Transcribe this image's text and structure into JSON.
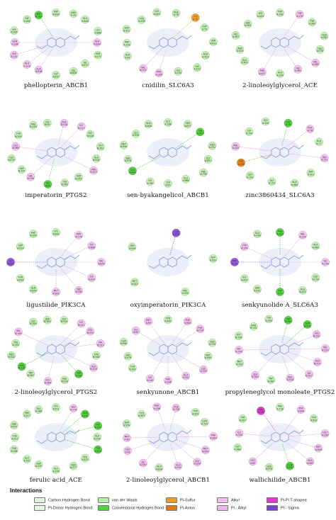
{
  "panels": [
    {
      "caption": "phellopterin_ABCB1",
      "residues": [
        [
          "ASP",
          "B:895",
          "vdw"
        ],
        [
          "ASN",
          "A:30",
          "vdw"
        ],
        [
          "GLU",
          "A:848",
          "vdw"
        ],
        [
          "LYS",
          "A:888",
          "vdw"
        ],
        [
          "ALA",
          "A:830",
          "alkyl"
        ],
        [
          "SER",
          "A:171",
          "vdw"
        ],
        [
          "ILE",
          "A:213",
          "vdw"
        ],
        [
          "LYS",
          "A:826",
          "vdw"
        ],
        [
          "GLY",
          "A:827",
          "vdw"
        ],
        [
          "ALA",
          "A:918",
          "alkyl"
        ],
        [
          "ALA",
          "A:129",
          "alkyl"
        ],
        [
          "LEU",
          "A:132",
          "alkyl"
        ],
        [
          "GLN",
          "A:186",
          "alkyl"
        ],
        [
          "LYS",
          "A:185",
          "vdw"
        ],
        [
          "GLY",
          "A:186",
          "vdw"
        ],
        [
          "SER",
          "A:183",
          "hbond"
        ]
      ]
    },
    {
      "caption": "cnidilin_SLC6A3",
      "residues": [
        [
          "PHE",
          "A:76",
          "vdw"
        ],
        [
          "CYS",
          "A:75",
          "sulfur"
        ],
        [
          "ASP",
          "A:79",
          "vdw"
        ],
        [
          "SER",
          "A:421",
          "vdw"
        ],
        [
          "ALA",
          "A:423",
          "vdw"
        ],
        [
          "GLY",
          "A:153",
          "vdw"
        ],
        [
          "LEU",
          "A:150",
          "vdw"
        ],
        [
          "PHE",
          "A:320",
          "alkyl"
        ],
        [
          "VAL",
          "A:152",
          "alkyl"
        ],
        [
          "ALA",
          "A:81",
          "vdw"
        ],
        [
          "PHE",
          "A:155",
          "vdw"
        ],
        [
          "SER",
          "A:422",
          "vdw"
        ],
        [
          "TYR",
          "A:156",
          "vdw"
        ],
        [
          "GLY",
          "A:425",
          "vdw"
        ]
      ]
    },
    {
      "caption": "2-linoleoylglycerol_ACE",
      "residues": [
        [
          "THR",
          "A:282",
          "vdw"
        ],
        [
          "TRP",
          "A:279",
          "alkyl"
        ],
        [
          "TYR",
          "A:360",
          "vdw"
        ],
        [
          "GLN",
          "A:281",
          "vdw"
        ],
        [
          "GLU",
          "A:376",
          "vdw"
        ],
        [
          "VAL",
          "A:380",
          "alkyl"
        ],
        [
          "HIS",
          "A:383",
          "alkyl"
        ],
        [
          "ALA",
          "A:354",
          "vdw"
        ],
        [
          "PHE",
          "A:457",
          "alkyl"
        ],
        [
          "GLU",
          "A:403",
          "vdw"
        ],
        [
          "ASP",
          "A:415",
          "vdw"
        ],
        [
          "HIS",
          "A:387",
          "vdw"
        ],
        [
          "SER",
          "A:355",
          "vdw"
        ],
        [
          "LYS",
          "A:454",
          "vdw"
        ]
      ]
    },
    {
      "caption": "imperatorin_PTGS2",
      "residues": [
        [
          "PHE",
          "B:518",
          "alkyl"
        ],
        [
          "ILE",
          "B:517",
          "alkyl"
        ],
        [
          "GLY",
          "B:526",
          "vdw"
        ],
        [
          "LEU",
          "B:352",
          "vdw"
        ],
        [
          "ALA",
          "B:516",
          "vdw"
        ],
        [
          "ARG",
          "B:513",
          "alkyl"
        ],
        [
          "SER",
          "B:353",
          "vdw"
        ],
        [
          "TYR",
          "B:385",
          "vdw"
        ],
        [
          "HIS",
          "B:90",
          "hbond"
        ],
        [
          "VAL",
          "B:349",
          "alkyl"
        ],
        [
          "ASP",
          "B:347",
          "vdw"
        ],
        [
          "GLY",
          "B:192",
          "vdw"
        ],
        [
          "LEU",
          "B:384",
          "alkyl"
        ],
        [
          "TYR",
          "B:355",
          "vdw"
        ],
        [
          "ARG",
          "B:120",
          "vdw"
        ],
        [
          "LYS",
          "B:83",
          "vdw"
        ]
      ]
    },
    {
      "caption": "sen-byakangelicol_ABCB1",
      "residues": [
        [
          "GLU",
          "A:788",
          "vdw"
        ],
        [
          "SER",
          "A:837",
          "vdw"
        ],
        [
          "TYR",
          "A:953",
          "hbond"
        ],
        [
          "ASN",
          "A:721",
          "vdw"
        ],
        [
          "GLY",
          "A:831",
          "vdw"
        ],
        [
          "PHE",
          "A:728",
          "vdw"
        ],
        [
          "ALA",
          "A:985",
          "vdw"
        ],
        [
          "LEU",
          "A:65",
          "vdw"
        ],
        [
          "ILE",
          "A:340",
          "vdw"
        ],
        [
          "GLN",
          "A:990",
          "hbond"
        ],
        [
          "SER",
          "A:979",
          "vdw"
        ],
        [
          "MET",
          "A:949",
          "vdw"
        ],
        [
          "LEU",
          "A:339",
          "vdw"
        ],
        [
          "GLN",
          "A:838",
          "vdw"
        ]
      ]
    },
    {
      "caption": "zinc3860434_SLC6A3",
      "residues": [
        [
          "ASP",
          "A:79",
          "hbond"
        ],
        [
          "PHE",
          "A:76",
          "alkyl"
        ],
        [
          "ALA",
          "A:77",
          "vdw"
        ],
        [
          "VAL",
          "A:152",
          "alkyl"
        ],
        [
          "SER",
          "A:421",
          "vdw"
        ],
        [
          "ALA",
          "A:480",
          "vdw"
        ],
        [
          "GLY",
          "A:153",
          "vdw"
        ],
        [
          "LEU",
          "A:150",
          "vdw"
        ],
        [
          "TYR",
          "A:156",
          "anion"
        ],
        [
          "PHE",
          "A:320",
          "alkyl"
        ],
        [
          "ILE",
          "A:154",
          "vdw"
        ],
        [
          "GLY",
          "A:426",
          "vdw"
        ]
      ]
    },
    {
      "caption": "ligustilide_PIK3CA",
      "residues": [
        [
          "LYS",
          "A:802",
          "vdw"
        ],
        [
          "PRO",
          "A:778",
          "alkyl"
        ],
        [
          "ILE",
          "A:848",
          "alkyl"
        ],
        [
          "VAL",
          "A:850",
          "alkyl"
        ],
        [
          "ILE",
          "A:932",
          "alkyl"
        ],
        [
          "TRP",
          "A:780",
          "alkyl"
        ],
        [
          "MET",
          "A:922",
          "alkyl"
        ],
        [
          "GLN",
          "A:859",
          "vdw"
        ],
        [
          "THR",
          "A:856",
          "vdw"
        ],
        [
          "ILE",
          "A:800",
          "sigma"
        ],
        [
          "ASP",
          "A:933",
          "vdw"
        ],
        [
          "PHE",
          "A:930",
          "vdw"
        ]
      ]
    },
    {
      "caption": "oxyimperatorin_PIK3CA",
      "residues": [
        [
          "GLN",
          "A:859",
          "sigma"
        ],
        [
          "ASP",
          "A:933",
          "vdw"
        ],
        [
          "PHE",
          "A:930",
          "vdw"
        ],
        [
          "MET",
          "A:922",
          "vdw"
        ],
        [
          "SER",
          "A:919",
          "vdw"
        ]
      ]
    },
    {
      "caption": "senkyunolide A_SLC6A3",
      "residues": [
        [
          "PHE",
          "A:320",
          "hbond"
        ],
        [
          "VAL",
          "A:152",
          "alkyl"
        ],
        [
          "ALA",
          "A:480",
          "vdw"
        ],
        [
          "ILE",
          "A:154",
          "alkyl"
        ],
        [
          "LEU",
          "A:150",
          "vdw"
        ],
        [
          "ALA",
          "A:423",
          "vdw"
        ],
        [
          "ASP",
          "A:79",
          "hbond"
        ],
        [
          "SER",
          "A:421",
          "vdw"
        ],
        [
          "GLY",
          "A:425",
          "vdw"
        ],
        [
          "PHE",
          "A:76",
          "sigma"
        ],
        [
          "TYR",
          "A:156",
          "alkyl"
        ],
        [
          "GLU",
          "A:426",
          "vdw"
        ]
      ]
    },
    {
      "caption": "2-linoleoylglycerol_PTGS2",
      "residues": [
        [
          "GLY",
          "B:526",
          "vdw"
        ],
        [
          "ILE",
          "B:517",
          "alkyl"
        ],
        [
          "LEU",
          "B:352",
          "alkyl"
        ],
        [
          "VAL",
          "B:523",
          "alkyl"
        ],
        [
          "TYR",
          "B:385",
          "vdw"
        ],
        [
          "ALA",
          "B:516",
          "alkyl"
        ],
        [
          "SER",
          "B:530",
          "hbond"
        ],
        [
          "PHE",
          "B:518",
          "vdw"
        ],
        [
          "LEU",
          "B:384",
          "alkyl"
        ],
        [
          "TRP",
          "B:387",
          "vdw"
        ],
        [
          "ARG",
          "B:120",
          "hbond"
        ],
        [
          "MET",
          "B:522",
          "vdw"
        ],
        [
          "TYR",
          "B:355",
          "vdw"
        ],
        [
          "VAL",
          "B:349",
          "alkyl"
        ],
        [
          "LEU",
          "B:359",
          "vdw"
        ],
        [
          "SER",
          "B:353",
          "vdw"
        ]
      ]
    },
    {
      "caption": "senkyunone_ABCB1",
      "residues": [
        [
          "TYR",
          "A:953",
          "vdw"
        ],
        [
          "PHE",
          "A:983",
          "alkyl"
        ],
        [
          "PHE",
          "A:728",
          "alkyl"
        ],
        [
          "GLN",
          "A:725",
          "vdw"
        ],
        [
          "MET",
          "A:949",
          "vdw"
        ],
        [
          "LEU",
          "A:339",
          "alkyl"
        ],
        [
          "ALA",
          "A:342",
          "alkyl"
        ],
        [
          "PHE",
          "A:336",
          "alkyl"
        ],
        [
          "ILE",
          "A:340",
          "alkyl"
        ],
        [
          "TYR",
          "A:307",
          "vdw"
        ],
        [
          "SER",
          "A:979",
          "vdw"
        ],
        [
          "GLN",
          "A:990",
          "vdw"
        ],
        [
          "LEU",
          "A:65",
          "alkyl"
        ],
        [
          "MET",
          "A:69",
          "alkyl"
        ]
      ]
    },
    {
      "caption": "propyleneglycol monoleate_PTGS2",
      "residues": [
        [
          "TYR",
          "B:385",
          "hbond"
        ],
        [
          "SER",
          "B:530",
          "hbond"
        ],
        [
          "LEU",
          "B:352",
          "alkyl"
        ],
        [
          "VAL",
          "B:523",
          "alkyl"
        ],
        [
          "ALA",
          "B:527",
          "alkyl"
        ],
        [
          "ILE",
          "B:517",
          "alkyl"
        ],
        [
          "PHE",
          "B:518",
          "alkyl"
        ],
        [
          "TRP",
          "B:387",
          "vdw"
        ],
        [
          "LEU",
          "B:384",
          "alkyl"
        ],
        [
          "MET",
          "B:522",
          "vdw"
        ],
        [
          "VAL",
          "B:349",
          "alkyl"
        ],
        [
          "GLY",
          "B:526",
          "vdw"
        ],
        [
          "ARG",
          "B:120",
          "vdw"
        ],
        [
          "TYR",
          "B:355",
          "vdw"
        ]
      ]
    },
    {
      "caption": "ferulic acid_ACE",
      "residues": [
        [
          "LYS",
          "A:511",
          "vdw"
        ],
        [
          "TRP",
          "A:279",
          "alkyl"
        ],
        [
          "GLN",
          "A:281",
          "hbond"
        ],
        [
          "HIS",
          "A:353",
          "hbond"
        ],
        [
          "ALA",
          "A:354",
          "vdw"
        ],
        [
          "TYR",
          "A:520",
          "hbond"
        ],
        [
          "TYR",
          "A:523",
          "vdw"
        ],
        [
          "ASN",
          "A:277",
          "vdw"
        ],
        [
          "GLU",
          "A:376",
          "vdw"
        ],
        [
          "ASP",
          "A:415",
          "vdw"
        ],
        [
          "GLU",
          "A:162",
          "vdw"
        ],
        [
          "THR",
          "A:166",
          "vdw"
        ],
        [
          "HIS",
          "A:513",
          "vdw"
        ],
        [
          "PHE",
          "A:457",
          "vdw"
        ],
        [
          "PHE",
          "A:527",
          "vdw"
        ],
        [
          "VAL",
          "A:380",
          "vdw"
        ]
      ]
    },
    {
      "caption": "2-linoleoylglycerol_ABCB1",
      "residues": [
        [
          "PHE",
          "A:728",
          "alkyl"
        ],
        [
          "TYR",
          "A:953",
          "vdw"
        ],
        [
          "GLN",
          "A:725",
          "vdw"
        ],
        [
          "PHE",
          "A:983",
          "alkyl"
        ],
        [
          "MET",
          "A:949",
          "alkyl"
        ],
        [
          "LEU",
          "A:339",
          "alkyl"
        ],
        [
          "ALA",
          "A:342",
          "alkyl"
        ],
        [
          "GLN",
          "A:838",
          "vdw"
        ],
        [
          "ILE",
          "A:340",
          "alkyl"
        ],
        [
          "LEU",
          "A:65",
          "alkyl"
        ],
        [
          "MET",
          "A:69",
          "alkyl"
        ],
        [
          "SER",
          "A:979",
          "vdw"
        ],
        [
          "TYR",
          "A:307",
          "vdw"
        ],
        [
          "PHE",
          "A:336",
          "alkyl"
        ]
      ]
    },
    {
      "caption": "wallichilide_ABCB1",
      "residues": [
        [
          "PHE",
          "A:728",
          "vdw"
        ],
        [
          "PHE",
          "A:983",
          "alkyl"
        ],
        [
          "TYR",
          "A:953",
          "vdw"
        ],
        [
          "LEU",
          "A:339",
          "alkyl"
        ],
        [
          "MET",
          "A:949",
          "alkyl"
        ],
        [
          "ALA",
          "A:985",
          "alkyl"
        ],
        [
          "GLN",
          "A:990",
          "hbond"
        ],
        [
          "SER",
          "A:979",
          "vdw"
        ],
        [
          "LEU",
          "A:65",
          "alkyl"
        ],
        [
          "GLY",
          "A:989",
          "vdw"
        ],
        [
          "ILE",
          "A:340",
          "alkyl"
        ],
        [
          "TYR",
          "A:307",
          "vdw"
        ],
        [
          "PHE",
          "A:336",
          "pistack"
        ]
      ]
    }
  ],
  "legend": {
    "title": "Interactions",
    "items": [
      {
        "key": "chbond",
        "label": "Carbon Hydrogen Bond",
        "color": "#dff7d8"
      },
      {
        "key": "pidonor",
        "label": "Pi-Donor Hydrogen Bond",
        "color": "#e6f9e0"
      },
      {
        "key": "vdw",
        "label": "van der Waals",
        "color": "#b8ecaa"
      },
      {
        "key": "hbond",
        "label": "Conventional Hydrogen Bond",
        "color": "#4fd63a"
      },
      {
        "key": "sulfur",
        "label": "Pi-Sulfur",
        "color": "#e8a02a"
      },
      {
        "key": "anion",
        "label": "Pi-Anion",
        "color": "#e07a10"
      },
      {
        "key": "alkyl",
        "label": "Alkyl",
        "color": "#f2bcee"
      },
      {
        "key": "pialkyl",
        "label": "Pi - Alkyl",
        "color": "#f0b6ec"
      },
      {
        "key": "pistack",
        "label": "Pi-Pi T-shaped",
        "color": "#e336d6"
      },
      {
        "key": "sigma",
        "label": "Pi - Sigma",
        "color": "#7b3fd6"
      }
    ]
  },
  "colors": {
    "vdw": "#c6f0b8",
    "hbond": "#55d640",
    "alkyl": "#f4c4f0",
    "sulfur": "#f0a830",
    "anion": "#e88a20",
    "sigma": "#9656e0",
    "pistack": "#e03ad6",
    "vdw_stroke": "#6ec25a",
    "alkyl_stroke": "#c77cc0",
    "molecule": "#8a9bd8",
    "halo": "#c9d2ef"
  }
}
